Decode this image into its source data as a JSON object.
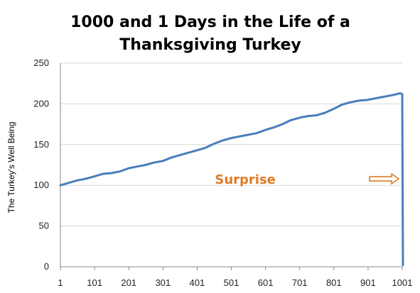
{
  "chart_data": {
    "type": "line",
    "title_lines": [
      "1000 and 1 Days in the Life of a",
      "Thanksgiving Turkey"
    ],
    "xlabel": "",
    "ylabel": "The Turkey's Well Being",
    "xlim": [
      1,
      1001
    ],
    "ylim": [
      0,
      250
    ],
    "x_ticks": [
      "1",
      "101",
      "201",
      "301",
      "401",
      "501",
      "601",
      "701",
      "801",
      "901",
      "1001"
    ],
    "y_ticks": [
      "0",
      "50",
      "100",
      "150",
      "200",
      "250"
    ],
    "grid": "horizontal",
    "legend": "none",
    "line_color": "#4a7ebb",
    "series": [
      {
        "x": [
          1,
          25,
          50,
          75,
          101,
          125,
          150,
          175,
          201,
          225,
          250,
          275,
          301,
          325,
          350,
          375,
          401,
          425,
          450,
          475,
          501,
          525,
          550,
          575,
          601,
          625,
          650,
          675,
          701,
          725,
          750,
          775,
          801,
          825,
          850,
          875,
          901,
          925,
          950,
          975,
          995,
          1001,
          1003
        ],
        "values": [
          100,
          103,
          106,
          108,
          111,
          114,
          115,
          117,
          121,
          123,
          125,
          128,
          130,
          134,
          137,
          140,
          143,
          146,
          151,
          155,
          158,
          160,
          162,
          164,
          168,
          171,
          175,
          180,
          183,
          185,
          186,
          189,
          194,
          199,
          202,
          204,
          205,
          207,
          209,
          211,
          213,
          212,
          2
        ]
      }
    ],
    "annotations": [
      {
        "text": "Surprise",
        "color": "#e07b24",
        "x": 600,
        "y": 108,
        "arrow_to_x": 995
      }
    ]
  }
}
